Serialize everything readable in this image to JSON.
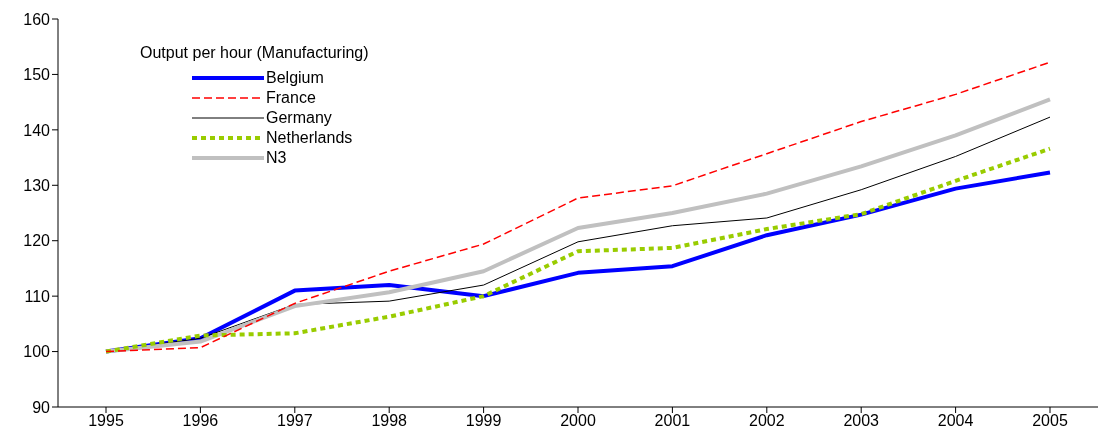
{
  "chart_data": {
    "type": "line",
    "legend_title": "Output per hour (Manufacturing)",
    "categories": [
      "1995",
      "1996",
      "1997",
      "1998",
      "1999",
      "2000",
      "2001",
      "2002",
      "2003",
      "2004",
      "2005"
    ],
    "ylim": [
      90,
      160
    ],
    "yticks": [
      90,
      100,
      110,
      120,
      130,
      140,
      150,
      160
    ],
    "grid": false,
    "legend": "top left",
    "marker": "none",
    "series": [
      {
        "name": "Belgium",
        "color": "#0000ff",
        "line_style": "solid",
        "values": [
          100,
          102.4,
          111,
          112,
          110,
          114.2,
          115.4,
          121,
          124.7,
          129.4,
          132.3
        ]
      },
      {
        "name": "France",
        "color": "#ff0000",
        "line_style": "dashed",
        "values": [
          100,
          100.7,
          108.7,
          114.5,
          119.4,
          127.7,
          129.9,
          135.7,
          141.5,
          146.4,
          152.2
        ]
      },
      {
        "name": "Germany",
        "color": "#000000",
        "line_style": "solid",
        "values": [
          100,
          102.4,
          108.5,
          109.1,
          112,
          119.8,
          122.7,
          124.1,
          129.2,
          135.2,
          142.3
        ]
      },
      {
        "name": "Netherlands",
        "color": "#99cc00",
        "line_style": "dotted",
        "values": [
          100,
          102.9,
          103.3,
          106.3,
          110,
          118.1,
          118.7,
          122.1,
          124.8,
          130.8,
          136.6
        ]
      },
      {
        "name": "N3",
        "color": "#c0c0c0",
        "line_style": "solid",
        "values": [
          100,
          101.8,
          108.2,
          110.7,
          114.5,
          122.3,
          125,
          128.5,
          133.4,
          139,
          145.5
        ]
      }
    ]
  }
}
